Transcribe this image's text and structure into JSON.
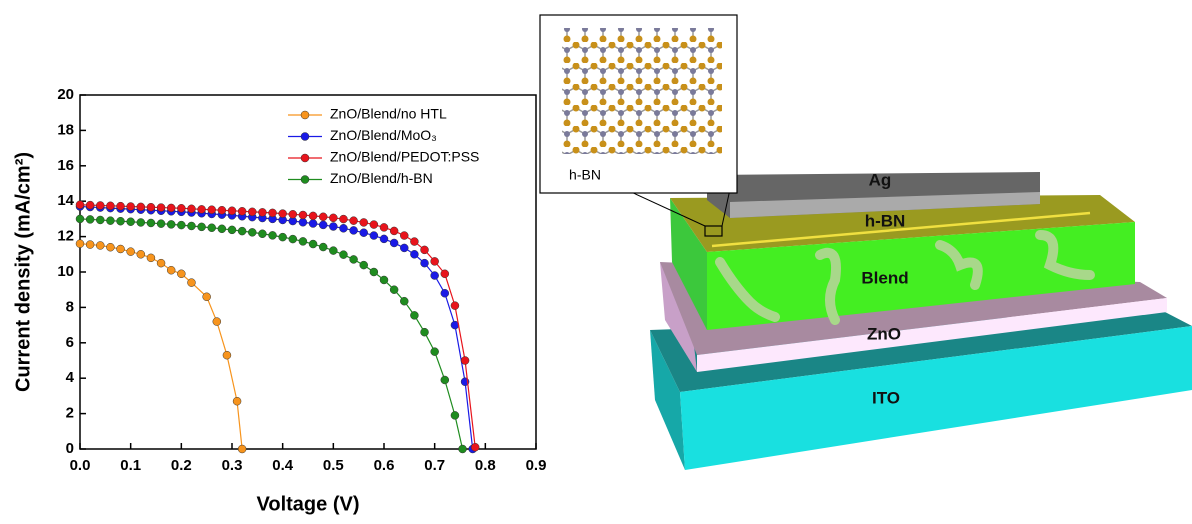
{
  "chart_data": {
    "type": "line",
    "xlabel": "Voltage (V)",
    "ylabel": "Current density (mA/cm²)",
    "xlim": [
      0,
      0.9
    ],
    "ylim": [
      0,
      20
    ],
    "xticks": [
      {
        "value": 0,
        "label": "0.0"
      },
      {
        "value": 0.1,
        "label": "0.1"
      },
      {
        "value": 0.2,
        "label": "0.2"
      },
      {
        "value": 0.3,
        "label": "0.3"
      },
      {
        "value": 0.4,
        "label": "0.4"
      },
      {
        "value": 0.5,
        "label": "0.5"
      },
      {
        "value": 0.6,
        "label": "0.6"
      },
      {
        "value": 0.7,
        "label": "0.7"
      },
      {
        "value": 0.8,
        "label": "0.8"
      },
      {
        "value": 0.9,
        "label": "0.9"
      }
    ],
    "yticks": [
      0,
      2,
      4,
      6,
      8,
      10,
      12,
      14,
      16,
      18,
      20
    ],
    "grid": false,
    "legend": "upper right",
    "series": [
      {
        "name": "ZnO/Blend/no HTL",
        "color": "#f7941d",
        "x": [
          0,
          0.02,
          0.04,
          0.06,
          0.08,
          0.1,
          0.12,
          0.14,
          0.16,
          0.18,
          0.2,
          0.22,
          0.25,
          0.27,
          0.29,
          0.31,
          0.32
        ],
        "values": [
          11.6,
          11.55,
          11.5,
          11.4,
          11.3,
          11.15,
          11.0,
          10.8,
          10.5,
          10.1,
          9.9,
          9.4,
          8.6,
          7.2,
          5.3,
          2.7,
          0
        ]
      },
      {
        "name": "ZnO/Blend/MoO₃",
        "color": "#1a1ae6",
        "x": [
          0,
          0.02,
          0.04,
          0.06,
          0.08,
          0.1,
          0.12,
          0.14,
          0.16,
          0.18,
          0.2,
          0.22,
          0.24,
          0.26,
          0.28,
          0.3,
          0.32,
          0.34,
          0.36,
          0.38,
          0.4,
          0.42,
          0.44,
          0.46,
          0.48,
          0.5,
          0.52,
          0.54,
          0.56,
          0.58,
          0.6,
          0.62,
          0.64,
          0.66,
          0.68,
          0.7,
          0.72,
          0.74,
          0.76,
          0.775
        ],
        "values": [
          13.7,
          13.67,
          13.64,
          13.61,
          13.58,
          13.55,
          13.52,
          13.49,
          13.46,
          13.43,
          13.4,
          13.36,
          13.32,
          13.28,
          13.24,
          13.2,
          13.15,
          13.1,
          13.05,
          13.0,
          12.94,
          12.88,
          12.81,
          12.74,
          12.66,
          12.57,
          12.47,
          12.35,
          12.22,
          12.06,
          11.87,
          11.64,
          11.36,
          11.0,
          10.5,
          9.8,
          8.8,
          7.0,
          3.8,
          0
        ]
      },
      {
        "name": "ZnO/Blend/PEDOT:PSS",
        "color": "#e8141c",
        "x": [
          0,
          0.02,
          0.04,
          0.06,
          0.08,
          0.1,
          0.12,
          0.14,
          0.16,
          0.18,
          0.2,
          0.22,
          0.24,
          0.26,
          0.28,
          0.3,
          0.32,
          0.34,
          0.36,
          0.38,
          0.4,
          0.42,
          0.44,
          0.46,
          0.48,
          0.5,
          0.52,
          0.54,
          0.56,
          0.58,
          0.6,
          0.62,
          0.64,
          0.66,
          0.68,
          0.7,
          0.72,
          0.74,
          0.76,
          0.78
        ],
        "values": [
          13.8,
          13.78,
          13.76,
          13.74,
          13.72,
          13.7,
          13.68,
          13.66,
          13.64,
          13.62,
          13.6,
          13.57,
          13.54,
          13.52,
          13.49,
          13.46,
          13.43,
          13.4,
          13.37,
          13.34,
          13.3,
          13.26,
          13.22,
          13.17,
          13.12,
          13.06,
          12.99,
          12.9,
          12.8,
          12.68,
          12.52,
          12.32,
          12.06,
          11.72,
          11.25,
          10.6,
          9.9,
          8.1,
          5.0,
          0.1
        ]
      },
      {
        "name": "ZnO/Blend/h-BN",
        "color": "#1f8c1f",
        "x": [
          0,
          0.02,
          0.04,
          0.06,
          0.08,
          0.1,
          0.12,
          0.14,
          0.16,
          0.18,
          0.2,
          0.22,
          0.24,
          0.26,
          0.28,
          0.3,
          0.32,
          0.34,
          0.36,
          0.38,
          0.4,
          0.42,
          0.44,
          0.46,
          0.48,
          0.5,
          0.52,
          0.54,
          0.56,
          0.58,
          0.6,
          0.62,
          0.64,
          0.66,
          0.68,
          0.7,
          0.72,
          0.74,
          0.755
        ],
        "values": [
          13.0,
          12.97,
          12.94,
          12.9,
          12.87,
          12.84,
          12.8,
          12.77,
          12.73,
          12.69,
          12.65,
          12.6,
          12.55,
          12.5,
          12.44,
          12.38,
          12.31,
          12.24,
          12.16,
          12.07,
          11.97,
          11.86,
          11.73,
          11.58,
          11.41,
          11.21,
          10.98,
          10.71,
          10.39,
          10.0,
          9.55,
          9.0,
          8.35,
          7.55,
          6.6,
          5.5,
          3.9,
          1.9,
          0
        ]
      }
    ]
  },
  "diagram": {
    "layers": [
      "Ag",
      "h-BN",
      "Blend",
      "ZnO",
      "ITO"
    ],
    "inset_label": "h-BN"
  }
}
